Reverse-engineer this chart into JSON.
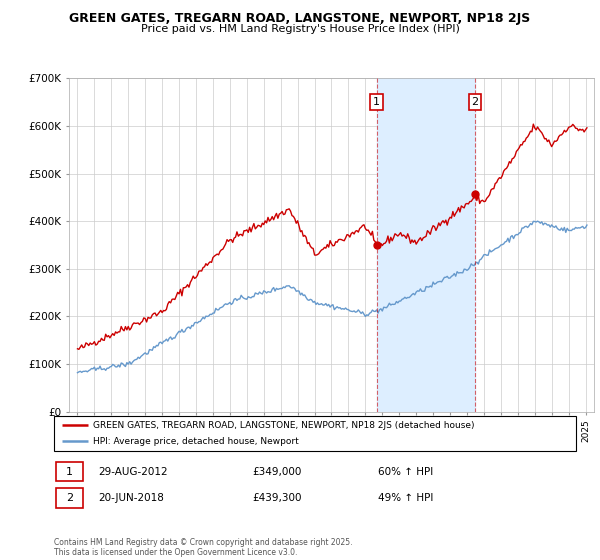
{
  "title": "GREEN GATES, TREGARN ROAD, LANGSTONE, NEWPORT, NP18 2JS",
  "subtitle": "Price paid vs. HM Land Registry's House Price Index (HPI)",
  "legend_entry1": "GREEN GATES, TREGARN ROAD, LANGSTONE, NEWPORT, NP18 2JS (detached house)",
  "legend_entry2": "HPI: Average price, detached house, Newport",
  "sale1_date": "29-AUG-2012",
  "sale1_price": "£349,000",
  "sale1_hpi": "60% ↑ HPI",
  "sale2_date": "20-JUN-2018",
  "sale2_price": "£439,300",
  "sale2_hpi": "49% ↑ HPI",
  "footnote": "Contains HM Land Registry data © Crown copyright and database right 2025.\nThis data is licensed under the Open Government Licence v3.0.",
  "red_color": "#cc0000",
  "blue_color": "#6699cc",
  "highlight_color": "#ddeeff",
  "sale1_x": 2012.66,
  "sale2_x": 2018.47,
  "ylim_min": 0,
  "ylim_max": 700000,
  "xlim_min": 1994.5,
  "xlim_max": 2025.5,
  "yticks": [
    0,
    100000,
    200000,
    300000,
    400000,
    500000,
    600000,
    700000
  ],
  "ytick_labels": [
    "£0",
    "£100K",
    "£200K",
    "£300K",
    "£400K",
    "£500K",
    "£600K",
    "£700K"
  ]
}
